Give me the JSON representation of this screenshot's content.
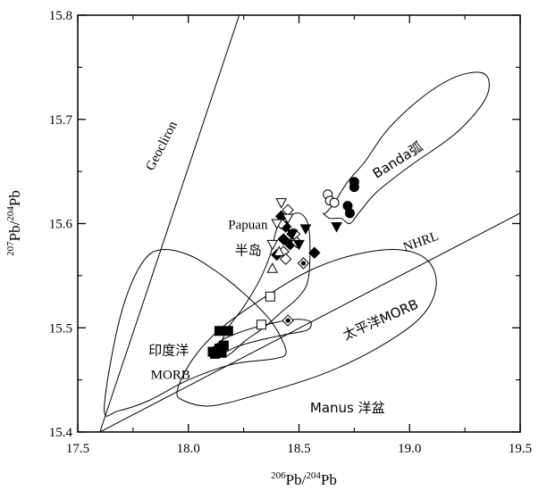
{
  "chart_data": {
    "type": "scatter",
    "xlabel": {
      "sup1": "206",
      "t1": "Pb/",
      "sup2": "204",
      "t2": "Pb"
    },
    "ylabel": {
      "sup1": "207",
      "t1": "Pb/",
      "sup2": "204",
      "t2": "Pb"
    },
    "xlim": [
      17.5,
      19.5
    ],
    "ylim": [
      15.4,
      15.8
    ],
    "xticks": [
      17.5,
      18.0,
      18.5,
      19.0,
      19.5
    ],
    "xtick_labels": [
      "17.5",
      "18.0",
      "18.5",
      "19.0",
      "19.5"
    ],
    "yticks": [
      15.4,
      15.5,
      15.6,
      15.7,
      15.8
    ],
    "ytick_labels": [
      "15.4",
      "15.5",
      "15.6",
      "15.7",
      "15.8"
    ],
    "grid": false,
    "reference_lines": [
      {
        "label": "Geocliron",
        "points": [
          [
            17.6,
            15.4
          ],
          [
            18.23,
            15.8
          ]
        ]
      },
      {
        "label": "NHRL",
        "points": [
          [
            17.6,
            15.4
          ],
          [
            19.5,
            15.61
          ]
        ]
      }
    ],
    "fields": [
      {
        "label": "Banda弧",
        "points": [
          [
            18.62,
            15.61
          ],
          [
            18.66,
            15.62
          ],
          [
            18.72,
            15.64
          ],
          [
            18.8,
            15.66
          ],
          [
            18.9,
            15.69
          ],
          [
            19.05,
            15.72
          ],
          [
            19.2,
            15.74
          ],
          [
            19.32,
            15.745
          ],
          [
            19.36,
            15.735
          ],
          [
            19.33,
            15.715
          ],
          [
            19.2,
            15.685
          ],
          [
            19.0,
            15.655
          ],
          [
            18.85,
            15.63
          ],
          [
            18.77,
            15.61
          ],
          [
            18.73,
            15.6
          ],
          [
            18.69,
            15.605
          ],
          [
            18.64,
            15.605
          ],
          [
            18.61,
            15.61
          ]
        ]
      },
      {
        "label": "Papuan半岛",
        "points": [
          [
            18.14,
            15.48
          ],
          [
            18.18,
            15.5
          ],
          [
            18.25,
            15.52
          ],
          [
            18.32,
            15.545
          ],
          [
            18.37,
            15.57
          ],
          [
            18.4,
            15.595
          ],
          [
            18.44,
            15.605
          ],
          [
            18.5,
            15.61
          ],
          [
            18.54,
            15.6
          ],
          [
            18.55,
            15.575
          ],
          [
            18.54,
            15.545
          ],
          [
            18.5,
            15.53
          ],
          [
            18.42,
            15.515
          ],
          [
            18.34,
            15.5
          ],
          [
            18.26,
            15.488
          ],
          [
            18.19,
            15.475
          ],
          [
            18.15,
            15.472
          ]
        ]
      },
      {
        "label": "印度洋 MORB",
        "points": [
          [
            17.62,
            15.42
          ],
          [
            17.66,
            15.48
          ],
          [
            17.72,
            15.53
          ],
          [
            17.8,
            15.565
          ],
          [
            17.88,
            15.575
          ],
          [
            18.0,
            15.57
          ],
          [
            18.12,
            15.555
          ],
          [
            18.24,
            15.535
          ],
          [
            18.36,
            15.51
          ],
          [
            18.42,
            15.49
          ],
          [
            18.44,
            15.475
          ],
          [
            18.38,
            15.47
          ],
          [
            18.2,
            15.465
          ],
          [
            18.0,
            15.45
          ],
          [
            17.82,
            15.43
          ],
          [
            17.68,
            15.42
          ]
        ]
      },
      {
        "label": "太平洋MORB",
        "points": [
          [
            17.95,
            15.44
          ],
          [
            18.02,
            15.47
          ],
          [
            18.15,
            15.5
          ],
          [
            18.35,
            15.53
          ],
          [
            18.55,
            15.555
          ],
          [
            18.75,
            15.57
          ],
          [
            18.95,
            15.575
          ],
          [
            19.08,
            15.565
          ],
          [
            19.12,
            15.54
          ],
          [
            19.05,
            15.51
          ],
          [
            18.85,
            15.48
          ],
          [
            18.6,
            15.455
          ],
          [
            18.3,
            15.435
          ],
          [
            18.1,
            15.425
          ],
          [
            17.98,
            15.43
          ]
        ]
      },
      {
        "label": "Manus 洋盆",
        "points": [
          [
            18.1,
            15.477
          ],
          [
            18.15,
            15.488
          ],
          [
            18.25,
            15.497
          ],
          [
            18.37,
            15.504
          ],
          [
            18.48,
            15.508
          ],
          [
            18.55,
            15.506
          ],
          [
            18.54,
            15.498
          ],
          [
            18.45,
            15.494
          ],
          [
            18.34,
            15.489
          ],
          [
            18.22,
            15.482
          ],
          [
            18.14,
            15.474
          ]
        ]
      }
    ],
    "series": [
      {
        "marker": "circle-filled",
        "x": [
          18.75,
          18.75,
          18.72,
          18.73
        ],
        "y": [
          15.635,
          15.64,
          15.617,
          15.61
        ]
      },
      {
        "marker": "circle-open",
        "x": [
          18.63,
          18.64,
          18.66
        ],
        "y": [
          15.628,
          15.622,
          15.62
        ]
      },
      {
        "marker": "diamond-filled",
        "x": [
          18.42,
          18.44,
          18.46,
          18.47,
          18.4,
          18.43,
          18.57
        ],
        "y": [
          15.607,
          15.597,
          15.58,
          15.59,
          15.57,
          15.585,
          15.572
        ]
      },
      {
        "marker": "diamond-open",
        "x": [
          18.45,
          18.42,
          18.48,
          18.43,
          18.49,
          18.44
        ],
        "y": [
          15.613,
          15.6,
          15.59,
          15.573,
          15.582,
          15.566
        ]
      },
      {
        "marker": "diamond-dot",
        "x": [
          18.45,
          18.52
        ],
        "y": [
          15.507,
          15.562
        ]
      },
      {
        "marker": "triangle-down-filled",
        "x": [
          18.5,
          18.53,
          18.67,
          18.47
        ],
        "y": [
          15.58,
          15.595,
          15.597,
          15.59
        ]
      },
      {
        "marker": "triangle-down-open",
        "x": [
          18.42,
          18.4,
          18.45,
          18.38
        ],
        "y": [
          15.62,
          15.6,
          15.605,
          15.58
        ]
      },
      {
        "marker": "triangle-up-open",
        "x": [
          18.38,
          18.41
        ],
        "y": [
          15.557,
          15.573
        ]
      },
      {
        "marker": "square-filled",
        "x": [
          18.14,
          18.18,
          18.16,
          18.11,
          18.14,
          18.15,
          18.12
        ],
        "y": [
          15.497,
          15.497,
          15.483,
          15.477,
          15.48,
          15.476,
          15.475
        ]
      },
      {
        "marker": "square-open",
        "x": [
          18.37,
          18.33
        ],
        "y": [
          15.53,
          15.503
        ]
      }
    ],
    "annotations": [
      {
        "name": "geocliron",
        "text": "Geocliron",
        "x": 17.84,
        "y": 15.65,
        "rotate": -63
      },
      {
        "name": "nhrl",
        "text": "NHRL",
        "x": 18.98,
        "y": 15.573,
        "rotate": -20
      },
      {
        "name": "banda",
        "text": "Banda弧",
        "x": 18.85,
        "y": 15.643,
        "rotate": -32
      },
      {
        "name": "papuan",
        "text": "Papuan",
        "x": 18.18,
        "y": 15.595,
        "rotate": 0
      },
      {
        "name": "papuan-2",
        "text": "半岛",
        "x": 18.21,
        "y": 15.57,
        "rotate": 0
      },
      {
        "name": "indian-1",
        "text": "印度洋",
        "x": 17.82,
        "y": 15.474,
        "rotate": 0
      },
      {
        "name": "indian-2",
        "text": "MORB",
        "x": 17.83,
        "y": 15.451,
        "rotate": 0
      },
      {
        "name": "pacific",
        "text": "太平洋MORB",
        "x": 18.71,
        "y": 15.488,
        "rotate": -24
      },
      {
        "name": "manus",
        "text": "Manus 洋盆",
        "x": 18.55,
        "y": 15.419,
        "rotate": 0
      }
    ]
  }
}
